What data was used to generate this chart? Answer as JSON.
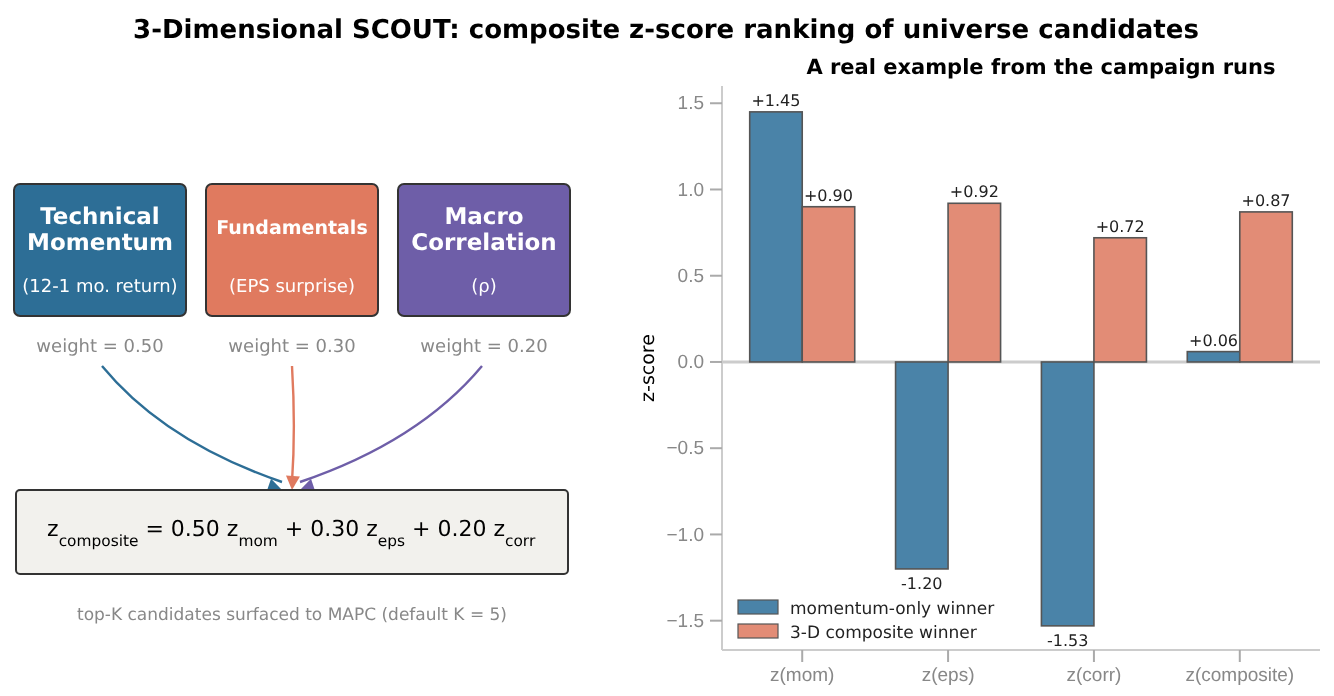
{
  "chart_data": [
    {
      "type": "other",
      "title": "3-Dimensional SCOUT: composite z-score ranking of universe candidates",
      "annotations": [
        "Technical Momentum",
        "Fundamentals",
        "Macro Correlation",
        "(12-1 mo. return)",
        "(EPS surprise)",
        "(ρ)",
        "weight = 0.50",
        "weight = 0.30",
        "weight = 0.20",
        "z$_{composite}$ = 0.50 z$_{mom}$ + 0.30 z$_{eps}$ + 0.20 z$_{corr}$",
        "top-K candidates surfaced to MAPC (default K = 5)"
      ]
    },
    {
      "type": "bar",
      "title": "A real example from the campaign runs",
      "ylabel": "z-score",
      "categories": [
        "z(mom)",
        "z(eps)",
        "z(corr)",
        "z(composite)"
      ],
      "series": [
        {
          "name": "momentum-only winner",
          "color": "#4a83a8",
          "values": [
            1.45,
            -1.2,
            -1.53,
            0.06
          ],
          "value_labels": [
            "+1.45",
            "-1.20",
            "-1.53",
            "+0.06"
          ]
        },
        {
          "name": "3-D composite winner",
          "color": "#e28c76",
          "values": [
            0.9,
            0.92,
            0.72,
            0.87
          ],
          "value_labels": [
            "+0.90",
            "+0.92",
            "+0.72",
            "+0.87"
          ]
        }
      ],
      "ylim": [
        -1.67,
        1.6
      ],
      "yticks": [
        {
          "value": -1.5,
          "label": "−1.5"
        },
        {
          "value": -1.0,
          "label": "−1.0"
        },
        {
          "value": -0.5,
          "label": "−0.5"
        },
        {
          "value": 0,
          "label": "0.0"
        },
        {
          "value": 0.5,
          "label": "0.5"
        },
        {
          "value": 1.0,
          "label": "1.0"
        },
        {
          "value": 1.5,
          "label": "1.5"
        }
      ],
      "ref_lines": [
        {
          "axis": "y",
          "value": 0,
          "color": "#cccccc"
        }
      ],
      "legend": "bottom left",
      "grid": false
    }
  ]
}
